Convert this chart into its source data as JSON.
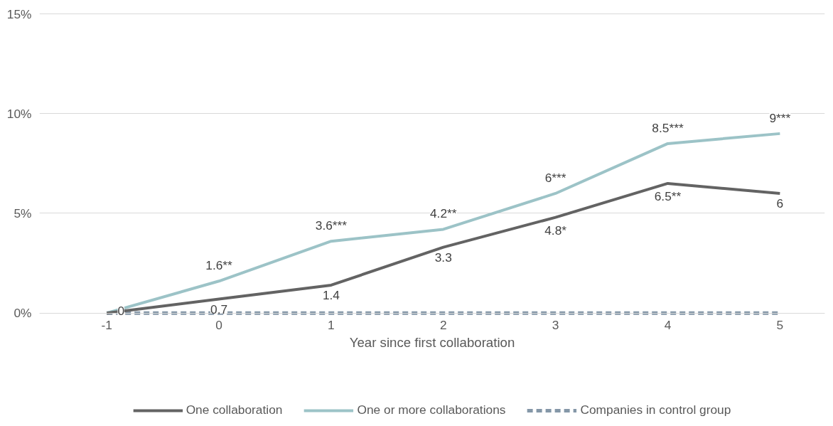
{
  "chart_data": {
    "type": "line",
    "xlabel": "Year since first collaboration",
    "categories": [
      "-1",
      "0",
      "1",
      "2",
      "3",
      "4",
      "5"
    ],
    "ylim": [
      0,
      15
    ],
    "yticks": [
      {
        "value": 0,
        "label": "0%"
      },
      {
        "value": 5,
        "label": "5%"
      },
      {
        "value": 10,
        "label": "10%"
      },
      {
        "value": 15,
        "label": "15%"
      }
    ],
    "grid": "y",
    "legend": "bottom",
    "marker": "none",
    "series": [
      {
        "name": "One collaboration",
        "color": "#636363",
        "line_style": "solid",
        "values": [
          0,
          0.7,
          1.4,
          3.3,
          4.8,
          6.5,
          6
        ],
        "value_labels": [
          "0",
          "0.7",
          "1.4",
          "3.3",
          "4.8*",
          "6.5**",
          "6"
        ]
      },
      {
        "name": "One or more collaborations",
        "color": "#9cc3c7",
        "line_style": "solid",
        "values": [
          0,
          1.6,
          3.6,
          4.2,
          6,
          8.5,
          9
        ],
        "value_labels": [
          null,
          "1.6**",
          "3.6***",
          "4.2**",
          "6***",
          "8.5***",
          "9***"
        ]
      },
      {
        "name": "Companies in control group",
        "color": "#8497a8",
        "line_style": "dashed",
        "values": [
          0,
          0,
          0,
          0,
          0,
          0,
          0
        ]
      }
    ]
  }
}
